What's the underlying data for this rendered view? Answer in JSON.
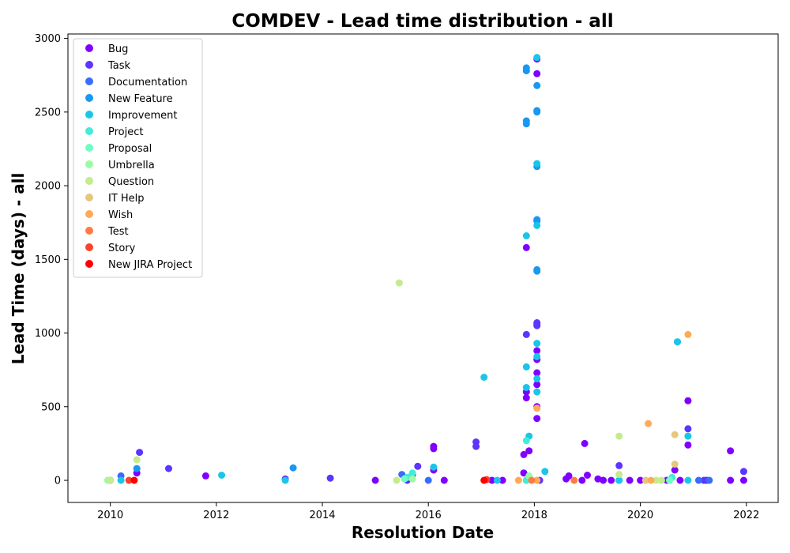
{
  "chart_data": {
    "type": "scatter",
    "title": "COMDEV - Lead time distribution - all",
    "xlabel": "Resolution Date",
    "ylabel": "Lead Time (days) - all",
    "xlim": [
      2009.2,
      2022.6
    ],
    "ylim": [
      -150,
      3030
    ],
    "x_ticks": [
      2010,
      2012,
      2014,
      2016,
      2018,
      2020,
      2022
    ],
    "y_ticks": [
      0,
      500,
      1000,
      1500,
      2000,
      2500,
      3000
    ],
    "grid": false,
    "legend_position": "upper-left",
    "series": [
      {
        "name": "Bug",
        "color": "#8000ff",
        "points": [
          [
            2010.0,
            0
          ],
          [
            2010.5,
            50
          ],
          [
            2011.8,
            30
          ],
          [
            2015.0,
            0
          ],
          [
            2015.7,
            40
          ],
          [
            2016.1,
            230
          ],
          [
            2016.1,
            215
          ],
          [
            2016.1,
            70
          ],
          [
            2016.3,
            0
          ],
          [
            2017.2,
            0
          ],
          [
            2017.4,
            0
          ],
          [
            2017.8,
            175
          ],
          [
            2017.8,
            50
          ],
          [
            2017.9,
            200
          ],
          [
            2017.85,
            600
          ],
          [
            2017.85,
            560
          ],
          [
            2017.85,
            1580
          ],
          [
            2018.05,
            420
          ],
          [
            2018.05,
            500
          ],
          [
            2018.05,
            650
          ],
          [
            2018.05,
            730
          ],
          [
            2018.05,
            820
          ],
          [
            2018.05,
            880
          ],
          [
            2018.05,
            2860
          ],
          [
            2018.05,
            1060
          ],
          [
            2018.05,
            2760
          ],
          [
            2018.6,
            10
          ],
          [
            2018.65,
            30
          ],
          [
            2018.9,
            0
          ],
          [
            2018.95,
            250
          ],
          [
            2019.0,
            35
          ],
          [
            2019.2,
            10
          ],
          [
            2019.3,
            0
          ],
          [
            2019.45,
            0
          ],
          [
            2019.8,
            0
          ],
          [
            2020.0,
            0
          ],
          [
            2020.5,
            0
          ],
          [
            2020.65,
            70
          ],
          [
            2020.9,
            240
          ],
          [
            2020.9,
            540
          ],
          [
            2020.75,
            0
          ],
          [
            2021.25,
            0
          ],
          [
            2021.7,
            200
          ],
          [
            2021.7,
            0
          ],
          [
            2021.95,
            0
          ]
        ]
      },
      {
        "name": "Task",
        "color": "#5c35fe",
        "points": [
          [
            2010.55,
            190
          ],
          [
            2011.1,
            80
          ],
          [
            2013.3,
            10
          ],
          [
            2014.15,
            15
          ],
          [
            2015.6,
            0
          ],
          [
            2015.8,
            95
          ],
          [
            2016.9,
            260
          ],
          [
            2016.9,
            230
          ],
          [
            2017.85,
            990
          ],
          [
            2018.05,
            1050
          ],
          [
            2018.05,
            1070
          ],
          [
            2018.1,
            0
          ],
          [
            2019.6,
            100
          ],
          [
            2020.9,
            350
          ],
          [
            2021.2,
            0
          ],
          [
            2021.95,
            60
          ]
        ]
      },
      {
        "name": "Documentation",
        "color": "#3a6cfb",
        "points": [
          [
            2010.2,
            30
          ],
          [
            2015.5,
            40
          ],
          [
            2016.0,
            0
          ],
          [
            2017.85,
            0
          ],
          [
            2021.1,
            0
          ],
          [
            2021.3,
            0
          ]
        ]
      },
      {
        "name": "New Feature",
        "color": "#1898f0",
        "points": [
          [
            2010.5,
            80
          ],
          [
            2013.45,
            85
          ],
          [
            2017.85,
            2420
          ],
          [
            2017.85,
            2440
          ],
          [
            2017.85,
            2780
          ],
          [
            2017.85,
            2800
          ],
          [
            2018.05,
            2500
          ],
          [
            2018.05,
            2510
          ],
          [
            2018.05,
            2130
          ],
          [
            2018.05,
            2680
          ],
          [
            2018.05,
            1420
          ],
          [
            2018.05,
            1430
          ],
          [
            2018.05,
            1760
          ],
          [
            2018.05,
            1770
          ],
          [
            2019.6,
            0
          ],
          [
            2020.7,
            940
          ]
        ]
      },
      {
        "name": "Improvement",
        "color": "#1ac6e8",
        "points": [
          [
            2010.2,
            0
          ],
          [
            2012.1,
            35
          ],
          [
            2013.3,
            0
          ],
          [
            2016.1,
            90
          ],
          [
            2017.05,
            700
          ],
          [
            2017.3,
            0
          ],
          [
            2017.85,
            770
          ],
          [
            2017.85,
            630
          ],
          [
            2017.9,
            300
          ],
          [
            2017.85,
            1660
          ],
          [
            2018.05,
            2870
          ],
          [
            2018.05,
            2150
          ],
          [
            2018.05,
            1730
          ],
          [
            2018.05,
            930
          ],
          [
            2018.05,
            840
          ],
          [
            2018.05,
            690
          ],
          [
            2018.05,
            600
          ],
          [
            2018.2,
            60
          ],
          [
            2019.6,
            0
          ],
          [
            2020.9,
            300
          ],
          [
            2020.7,
            940
          ],
          [
            2020.9,
            0
          ]
        ]
      },
      {
        "name": "Project",
        "color": "#45ecd5",
        "points": [
          [
            2015.6,
            20
          ],
          [
            2015.7,
            50
          ],
          [
            2017.85,
            270
          ],
          [
            2017.85,
            0
          ],
          [
            2020.6,
            20
          ]
        ]
      },
      {
        "name": "Proposal",
        "color": "#6dfec2",
        "points": [
          [
            2015.55,
            10
          ],
          [
            2020.55,
            0
          ]
        ]
      },
      {
        "name": "Umbrella",
        "color": "#9cfaa4",
        "points": [
          [
            2009.95,
            0
          ],
          [
            2015.7,
            10
          ],
          [
            2017.9,
            30
          ]
        ]
      },
      {
        "name": "Question",
        "color": "#c4eb8c",
        "points": [
          [
            2010.0,
            0
          ],
          [
            2010.5,
            140
          ],
          [
            2015.45,
            1340
          ],
          [
            2015.4,
            0
          ],
          [
            2019.6,
            300
          ],
          [
            2019.6,
            40
          ],
          [
            2020.3,
            0
          ],
          [
            2020.4,
            0
          ]
        ]
      },
      {
        "name": "IT Help",
        "color": "#e5c87d",
        "points": [
          [
            2020.65,
            310
          ],
          [
            2020.65,
            110
          ],
          [
            2020.1,
            0
          ]
        ]
      },
      {
        "name": "Wish",
        "color": "#ffaa56",
        "points": [
          [
            2017.7,
            0
          ],
          [
            2018.05,
            490
          ],
          [
            2018.05,
            0
          ],
          [
            2020.15,
            385
          ],
          [
            2020.2,
            0
          ],
          [
            2020.9,
            990
          ]
        ]
      },
      {
        "name": "Test",
        "color": "#ff7b45",
        "points": [
          [
            2017.95,
            0
          ],
          [
            2018.75,
            0
          ]
        ]
      },
      {
        "name": "Story",
        "color": "#ff4129",
        "points": [
          [
            2010.35,
            0
          ],
          [
            2017.1,
            5
          ]
        ]
      },
      {
        "name": "New JIRA Project",
        "color": "#ff0000",
        "points": [
          [
            2010.45,
            0
          ],
          [
            2017.05,
            0
          ]
        ]
      }
    ]
  }
}
